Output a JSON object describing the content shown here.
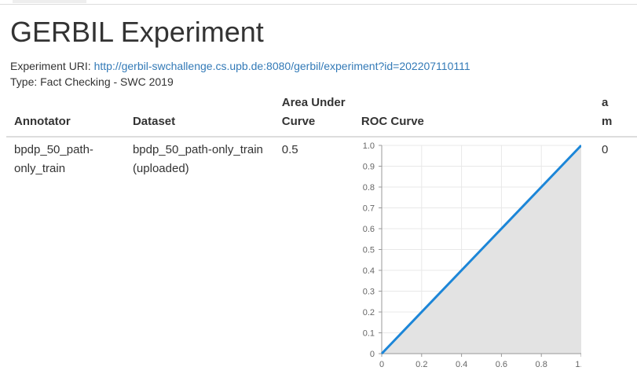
{
  "page_title": "GERBIL Experiment",
  "experiment": {
    "uri_label": "Experiment URI:",
    "uri": "http://gerbil-swchallenge.cs.upb.de:8080/gerbil/experiment?id=202207110111",
    "type_line": "Type: Fact Checking - SWC 2019"
  },
  "table": {
    "headers": {
      "annotator": "Annotator",
      "dataset": "Dataset",
      "auc_line1": "Area Under",
      "auc_line2": "Curve",
      "roc": "ROC Curve",
      "extra_line1": "a",
      "extra_line2": "m"
    },
    "rows": [
      {
        "annotator_line1": "bpdp_50_path-",
        "annotator_line2": "only_train",
        "dataset_line1": "bpdp_50_path-only_train",
        "dataset_line2": "(uploaded)",
        "auc": "0.5",
        "extra": "0"
      }
    ]
  },
  "chart_data": {
    "type": "area",
    "x": [
      0,
      1.0
    ],
    "y": [
      0,
      1.0
    ],
    "xlim": [
      0,
      1.0
    ],
    "ylim": [
      0,
      1.0
    ],
    "x_ticks": [
      "0",
      "0.2",
      "0.4",
      "0.6",
      "0.8",
      "1.0"
    ],
    "y_ticks": [
      "0",
      "0.1",
      "0.2",
      "0.3",
      "0.4",
      "0.5",
      "0.6",
      "0.7",
      "0.8",
      "0.9",
      "1.0"
    ],
    "grid": true,
    "line_color": "#1c86d8",
    "fill_color": "#e3e3e3"
  }
}
